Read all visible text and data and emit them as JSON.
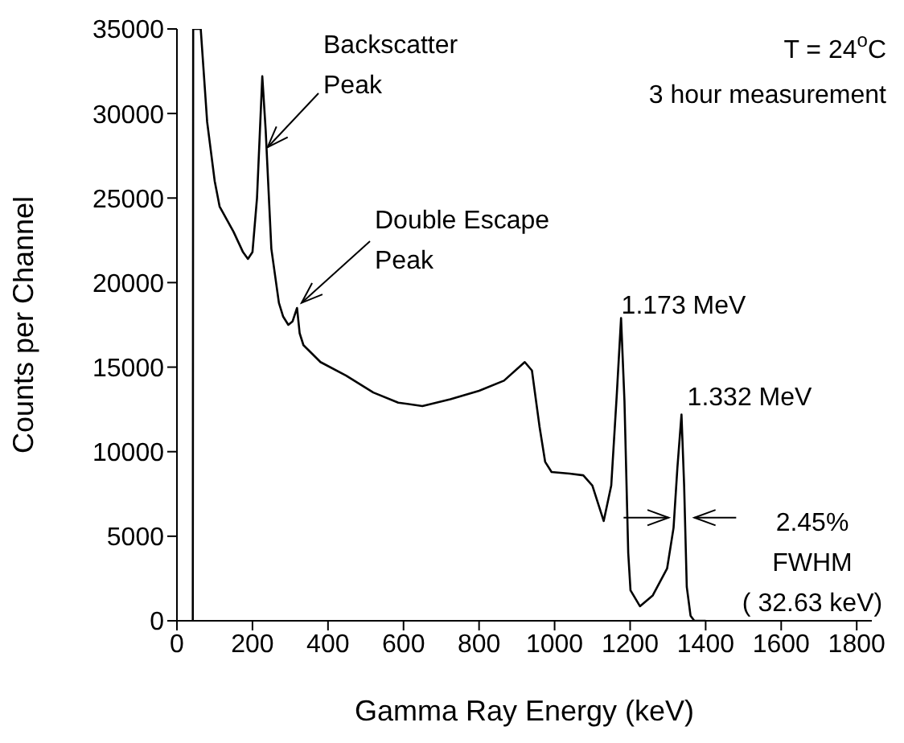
{
  "chart_data": {
    "type": "line",
    "xlabel": "Gamma Ray Energy (keV)",
    "ylabel": "Counts per Channel",
    "x": [
      42,
      43,
      63,
      80,
      100,
      113,
      150,
      175,
      188,
      200,
      212,
      226,
      235,
      250,
      270,
      281,
      295,
      306,
      318,
      325,
      335,
      380,
      448,
      520,
      586,
      650,
      724,
      800,
      866,
      921,
      940,
      960,
      975,
      992,
      1040,
      1076,
      1100,
      1130,
      1150,
      1165,
      1176,
      1185,
      1195,
      1201,
      1226,
      1260,
      1298,
      1315,
      1325,
      1336,
      1343,
      1350,
      1360,
      1370,
      1400
    ],
    "series": [
      {
        "color": "#000000",
        "values": [
          0,
          35000,
          35000,
          29500,
          26000,
          24500,
          23000,
          21800,
          21400,
          21800,
          25000,
          32200,
          29000,
          22000,
          18800,
          18000,
          17500,
          17700,
          18500,
          17000,
          16300,
          15300,
          14500,
          13500,
          12900,
          12700,
          13100,
          13600,
          14200,
          15300,
          14800,
          11500,
          9400,
          8800,
          8700,
          8600,
          8000,
          5900,
          8000,
          13500,
          17900,
          13000,
          4000,
          1800,
          860,
          1500,
          3100,
          5500,
          9000,
          12200,
          8000,
          2000,
          300,
          0,
          0
        ]
      }
    ],
    "xlim": [
      0,
      1840
    ],
    "xticks": [
      0,
      200,
      400,
      600,
      800,
      1000,
      1200,
      1400,
      1600,
      1800
    ],
    "ylim": [
      0,
      35000
    ],
    "yticks": [
      0,
      5000,
      10000,
      15000,
      20000,
      25000,
      30000,
      35000
    ],
    "marker": "none",
    "line_style": "solid",
    "annotations": [
      {
        "text": "Backscatter\nPeak",
        "x": 240,
        "y": 28000
      },
      {
        "text": "Double Escape\nPeak",
        "x": 330,
        "y": 18800
      },
      {
        "text": "1.173 MeV",
        "x": 1176,
        "y": 17900
      },
      {
        "text": "1.332 MeV",
        "x": 1336,
        "y": 12200
      },
      {
        "text": "2.45%\nFWHM\n( 32.63 keV)",
        "x": 1336,
        "y": 6100
      },
      "T = 24$^{o}$C",
      "3 hour measurement"
    ]
  }
}
